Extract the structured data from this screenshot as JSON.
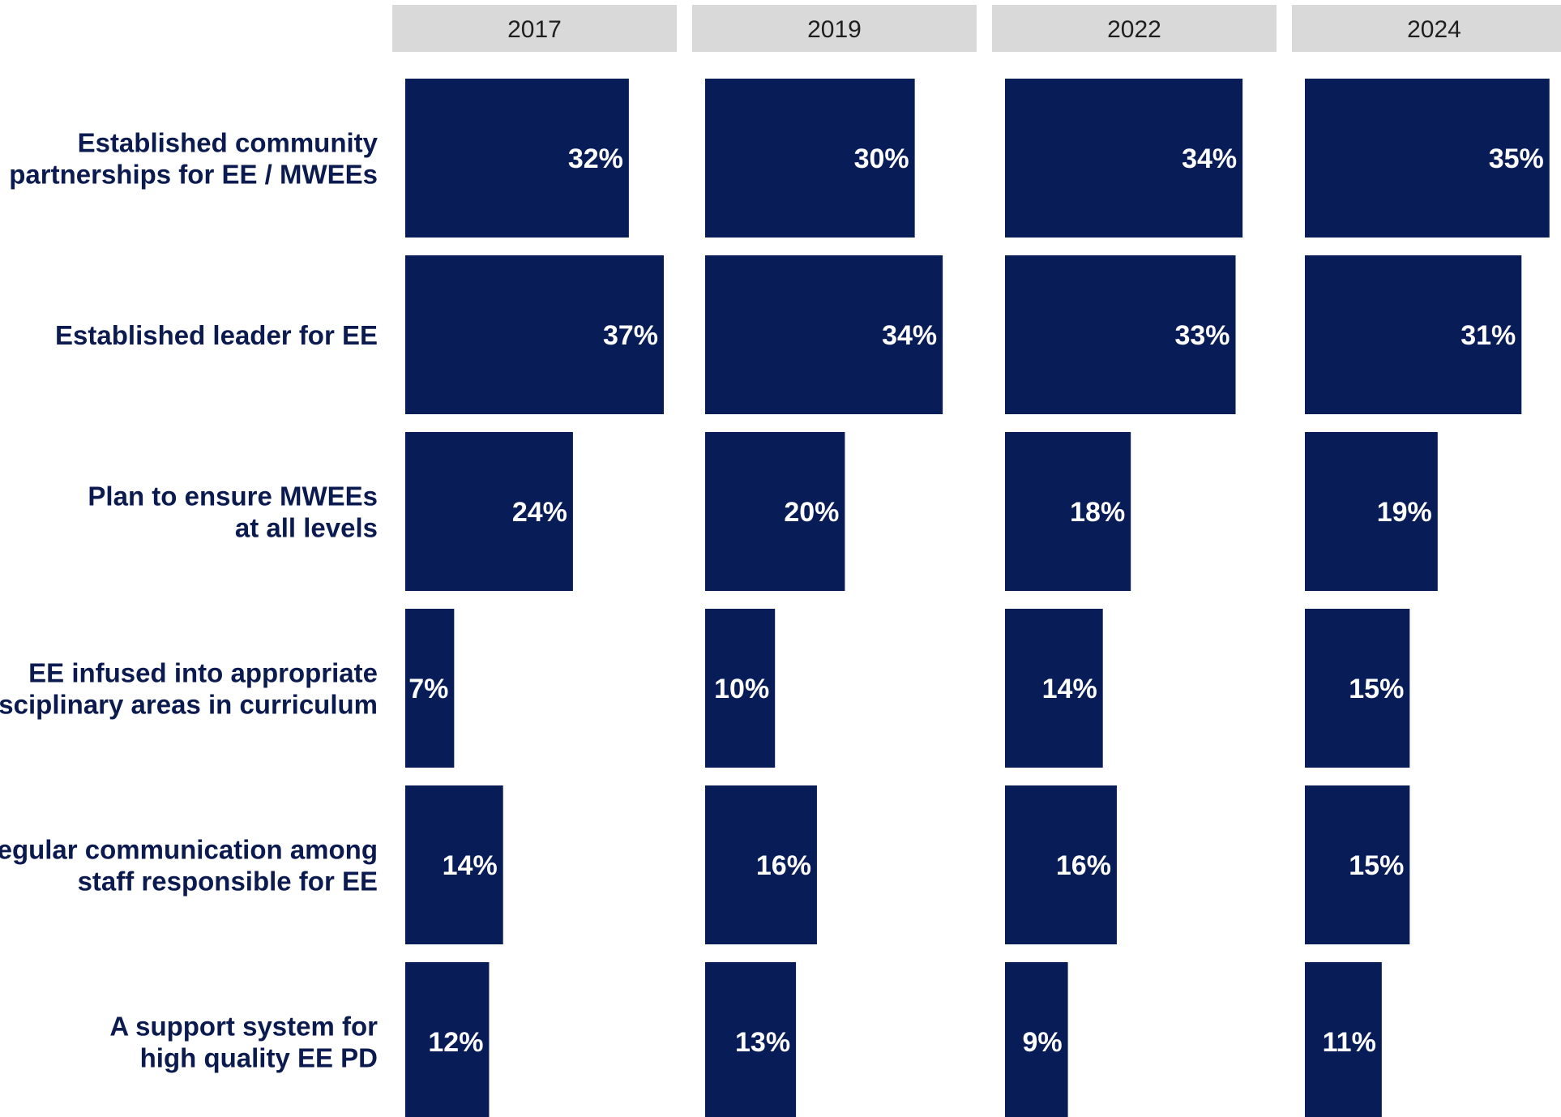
{
  "colors": {
    "bar": "#081d57",
    "header_bg": "#d9d9d9",
    "header_text": "#1f1f1f",
    "row_label": "#0b1a4f",
    "bar_label": "#ffffff"
  },
  "chart_data": {
    "type": "bar",
    "orientation": "horizontal",
    "layout": "small-multiples",
    "panels": [
      "2017",
      "2019",
      "2022",
      "2024"
    ],
    "categories": [
      [
        "Established community",
        "partnerships for EE / MWEEs"
      ],
      [
        "Established leader for EE"
      ],
      [
        "Plan to ensure MWEEs",
        "at all levels"
      ],
      [
        "EE infused into appropriate",
        "disciplinary areas in curriculum"
      ],
      [
        "Regular communication among",
        "staff responsible for EE"
      ],
      [
        "A support system for",
        "high quality EE PD"
      ]
    ],
    "series": [
      {
        "name": "2017",
        "values": [
          32,
          37,
          24,
          7,
          14,
          12
        ]
      },
      {
        "name": "2019",
        "values": [
          30,
          34,
          20,
          10,
          16,
          13
        ]
      },
      {
        "name": "2022",
        "values": [
          34,
          33,
          18,
          14,
          16,
          9
        ]
      },
      {
        "name": "2024",
        "values": [
          35,
          31,
          19,
          15,
          15,
          11
        ]
      }
    ],
    "value_suffix": "%",
    "xlim": [
      0,
      37
    ],
    "grid": false,
    "legend": "none"
  }
}
